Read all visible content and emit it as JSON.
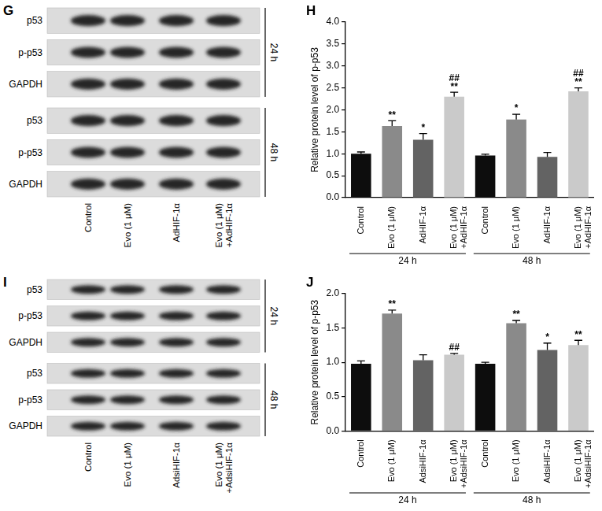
{
  "blots": [
    {
      "title": "G",
      "lanes": [
        "Control",
        "Evo (1 μM)",
        "AdHIF-1α",
        [
          "Evo (1 μM)",
          "+AdHIF-1α"
        ]
      ],
      "blocks": [
        {
          "time": "24 h",
          "rows": [
            "p53",
            "p-p53",
            "GAPDH"
          ]
        },
        {
          "time": "48 h",
          "rows": [
            "p53",
            "p-p53",
            "GAPDH"
          ]
        }
      ]
    },
    {
      "title": "I",
      "lanes": [
        "Control",
        "Evo (1 μM)",
        "AdsiHIF-1α",
        [
          "Evo (1 μM)",
          "+AdsiHIF-1α"
        ]
      ],
      "blocks": [
        {
          "time": "24 h",
          "rows": [
            "p53",
            "p-p53",
            "GAPDH"
          ]
        },
        {
          "time": "48 h",
          "rows": [
            "p53",
            "p-p53",
            "GAPDH"
          ]
        }
      ]
    }
  ],
  "chart_data": [
    {
      "type": "bar",
      "title": "H",
      "y_label": "Relative protein level of p-p53",
      "categories": [
        "Control",
        "Evo (1 μM)",
        "AdHIF-1α",
        [
          "Evo (1 μM)",
          "+AdHIF-1α"
        ],
        "Control",
        "Evo (1 μM)",
        "AdHIF-1α",
        [
          "Evo (1 μM)",
          "+AdHIF-1α"
        ]
      ],
      "group_labels": [
        "24 h",
        "24 h",
        "24 h",
        "24 h",
        "48 h",
        "48 h",
        "48 h",
        "48 h"
      ],
      "values": [
        1.0,
        1.63,
        1.32,
        2.3,
        0.96,
        1.78,
        0.93,
        2.42
      ],
      "errors": [
        0.04,
        0.12,
        0.14,
        0.1,
        0.03,
        0.12,
        0.1,
        0.08
      ],
      "annotations": [
        null,
        [
          "**"
        ],
        [
          "*"
        ],
        [
          "**",
          "##"
        ],
        null,
        [
          "*"
        ],
        null,
        [
          "**",
          "##"
        ]
      ],
      "colors": [
        "#0d0d0d",
        "#8a8a8a",
        "#636363",
        "#cacaca",
        "#0d0d0d",
        "#8a8a8a",
        "#636363",
        "#cacaca"
      ],
      "ylim": [
        0,
        4
      ],
      "yticks": [
        {
          "value": 0,
          "label": "0.0"
        },
        {
          "value": 0.5,
          "label": "0.5"
        },
        {
          "value": 1,
          "label": "1.0"
        },
        {
          "value": 1.5,
          "label": "1.5"
        },
        {
          "value": 2,
          "label": "2.0"
        },
        {
          "value": 2.5,
          "label": "2.5"
        },
        {
          "value": 3,
          "label": "3.0"
        },
        {
          "value": 3.5,
          "label": "3.5"
        },
        {
          "value": 4,
          "label": "4.0"
        }
      ],
      "grid": false
    },
    {
      "type": "bar",
      "title": "J",
      "y_label": "Relative protein level of p-p53",
      "categories": [
        "Control",
        "Evo (1 μM)",
        "AdsiHIF-1α",
        [
          "Evo (1 μM)",
          "+AdsiHIF-1α"
        ],
        "Control",
        "Evo (1 μM)",
        "AdsiHIF-1α",
        [
          "Evo (1 μM)",
          "+AdsiHIF-1α"
        ]
      ],
      "group_labels": [
        "24 h",
        "24 h",
        "24 h",
        "24 h",
        "48 h",
        "48 h",
        "48 h",
        "48 h"
      ],
      "values": [
        0.98,
        1.71,
        1.03,
        1.11,
        0.98,
        1.57,
        1.18,
        1.25
      ],
      "errors": [
        0.04,
        0.05,
        0.08,
        0.02,
        0.02,
        0.04,
        0.1,
        0.07
      ],
      "annotations": [
        null,
        [
          "**"
        ],
        null,
        [
          "##"
        ],
        null,
        [
          "**"
        ],
        [
          "*"
        ],
        [
          "**"
        ]
      ],
      "colors": [
        "#0d0d0d",
        "#8a8a8a",
        "#636363",
        "#cacaca",
        "#0d0d0d",
        "#8a8a8a",
        "#636363",
        "#cacaca"
      ],
      "ylim": [
        0,
        2
      ],
      "yticks": [
        {
          "value": 0,
          "label": "0.0"
        },
        {
          "value": 0.5,
          "label": "0.5"
        },
        {
          "value": 1,
          "label": "1.0"
        },
        {
          "value": 1.5,
          "label": "1.5"
        },
        {
          "value": 2,
          "label": "2.0"
        }
      ],
      "grid": false
    }
  ]
}
